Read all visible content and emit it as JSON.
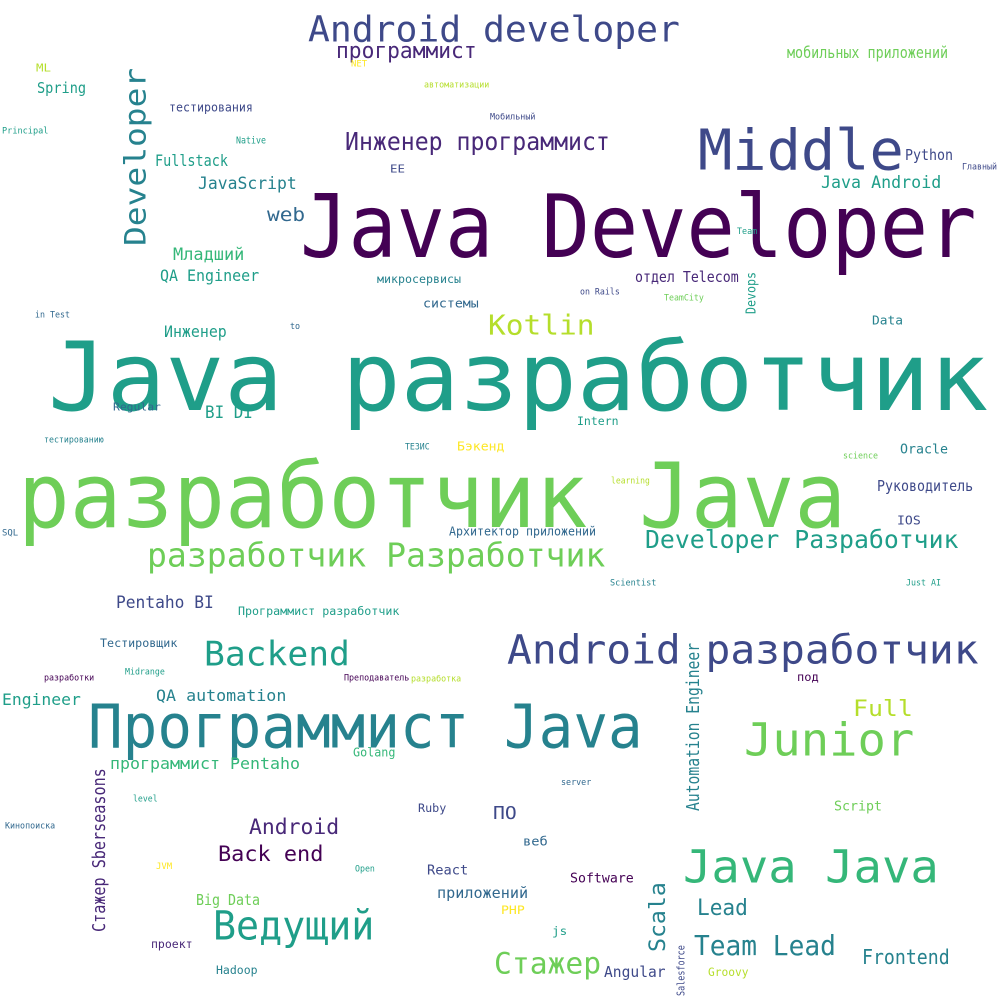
{
  "palette": {
    "dpurple": "#440154",
    "purple": "#482878",
    "indigo": "#3e4989",
    "blue": "#31688e",
    "steel": "#26828e",
    "teal": "#1f9e89",
    "green": "#35b779",
    "lgreen": "#6ece58",
    "lime": "#b5de2b",
    "yellow": "#fde725"
  },
  "words": [
    {
      "text": "Java разработчик",
      "color": "teal"
    },
    {
      "text": "разработчик Java",
      "color": "lgreen"
    },
    {
      "text": "Java Developer",
      "color": "dpurple"
    },
    {
      "text": "Программист Java",
      "color": "steel"
    },
    {
      "text": "Middle",
      "color": "indigo"
    },
    {
      "text": "Java Java",
      "color": "green"
    },
    {
      "text": "Android разработчик",
      "color": "indigo"
    },
    {
      "text": "Android developer",
      "color": "indigo"
    },
    {
      "text": "Junior",
      "color": "lgreen"
    },
    {
      "text": "Developer",
      "color": "steel"
    },
    {
      "text": "разработчик Разработчик",
      "color": "lgreen"
    },
    {
      "text": "Ведущий",
      "color": "teal"
    },
    {
      "text": "Backend",
      "color": "teal"
    },
    {
      "text": "Developer Разработчик",
      "color": "teal"
    },
    {
      "text": "Стажер",
      "color": "lgreen"
    },
    {
      "text": "Team Lead",
      "color": "steel"
    },
    {
      "text": "Kotlin",
      "color": "lime"
    },
    {
      "text": "Инженер программист",
      "color": "purple"
    },
    {
      "text": "программист",
      "color": "purple"
    },
    {
      "text": "Scala",
      "color": "steel"
    },
    {
      "text": "Back end",
      "color": "dpurple"
    },
    {
      "text": "Android",
      "color": "purple"
    },
    {
      "text": "Full",
      "color": "lime"
    },
    {
      "text": "Lead",
      "color": "steel"
    },
    {
      "text": "Frontend",
      "color": "steel"
    },
    {
      "text": "Automation Engineer",
      "color": "steel"
    },
    {
      "text": "Стажер Sberseasons",
      "color": "purple"
    },
    {
      "text": "QA automation",
      "color": "steel"
    },
    {
      "text": "web",
      "color": "blue"
    },
    {
      "text": "программист Pentaho",
      "color": "green"
    },
    {
      "text": "Pentaho BI",
      "color": "indigo"
    },
    {
      "text": "Java Android",
      "color": "teal"
    },
    {
      "text": "JavaScript",
      "color": "steel"
    },
    {
      "text": "Младший",
      "color": "green"
    },
    {
      "text": "QA Engineer",
      "color": "teal"
    },
    {
      "text": "мобильных приложений",
      "color": "lgreen"
    },
    {
      "text": "Fullstack",
      "color": "teal"
    },
    {
      "text": "Инженер",
      "color": "teal"
    },
    {
      "text": "BI DI",
      "color": "teal"
    },
    {
      "text": "Engineer",
      "color": "teal"
    },
    {
      "text": "Big Data",
      "color": "lgreen"
    },
    {
      "text": "ПО",
      "color": "indigo"
    },
    {
      "text": "Spring",
      "color": "teal"
    },
    {
      "text": "Python",
      "color": "indigo"
    },
    {
      "text": "Руководитель",
      "color": "indigo"
    },
    {
      "text": "отдел Telecom",
      "color": "purple"
    },
    {
      "text": "Oracle",
      "color": "steel"
    },
    {
      "text": "Angular",
      "color": "indigo"
    },
    {
      "text": "Software",
      "color": "dpurple"
    },
    {
      "text": "React",
      "color": "indigo"
    },
    {
      "text": "приложений",
      "color": "blue"
    },
    {
      "text": "Script",
      "color": "lgreen"
    },
    {
      "text": "IOS",
      "color": "indigo"
    },
    {
      "text": "Data",
      "color": "steel"
    },
    {
      "text": "Тестировщик",
      "color": "blue"
    },
    {
      "text": "Бэкенд",
      "color": "yellow"
    },
    {
      "text": "Архитектор приложений",
      "color": "blue"
    },
    {
      "text": "Программист разработчик",
      "color": "teal"
    },
    {
      "text": "системы",
      "color": "blue"
    },
    {
      "text": "тестирования",
      "color": "indigo"
    },
    {
      "text": "Devops",
      "color": "teal"
    },
    {
      "text": "веб",
      "color": "blue"
    },
    {
      "text": "js",
      "color": "teal"
    },
    {
      "text": "Intern",
      "color": "teal"
    },
    {
      "text": "под",
      "color": "dpurple"
    },
    {
      "text": "Golang",
      "color": "green"
    },
    {
      "text": "Hadoop",
      "color": "steel"
    },
    {
      "text": "PHP",
      "color": "yellow"
    },
    {
      "text": "проект",
      "color": "purple"
    },
    {
      "text": "ML",
      "color": "lime"
    },
    {
      "text": "EE",
      "color": "indigo"
    },
    {
      "text": "микросервисы",
      "color": "steel"
    },
    {
      "text": "Ruby",
      "color": "indigo"
    },
    {
      "text": "Regular",
      "color": "blue"
    },
    {
      "text": "Groovy",
      "color": "lime"
    },
    {
      "text": "Salesforce",
      "color": "indigo"
    },
    {
      "text": "Native",
      "color": "teal"
    },
    {
      "text": "NET",
      "color": "yellow"
    },
    {
      "text": "автоматизации",
      "color": "lime"
    },
    {
      "text": "Мобильный",
      "color": "indigo"
    },
    {
      "text": "Principal",
      "color": "teal"
    },
    {
      "text": "Главный",
      "color": "indigo"
    },
    {
      "text": "Team",
      "color": "teal"
    },
    {
      "text": "TeamCity",
      "color": "lgreen"
    },
    {
      "text": "on Rails",
      "color": "indigo"
    },
    {
      "text": "in Test",
      "color": "blue"
    },
    {
      "text": "to",
      "color": "blue"
    },
    {
      "text": "тестированию",
      "color": "steel"
    },
    {
      "text": "ТЕЗИС",
      "color": "steel"
    },
    {
      "text": "science",
      "color": "lgreen"
    },
    {
      "text": "learning",
      "color": "lime"
    },
    {
      "text": "SQL",
      "color": "blue"
    },
    {
      "text": "Scientist",
      "color": "steel"
    },
    {
      "text": "Just AI",
      "color": "teal"
    },
    {
      "text": "разработки",
      "color": "dpurple"
    },
    {
      "text": "Midrange",
      "color": "teal"
    },
    {
      "text": "Преподаватель",
      "color": "dpurple"
    },
    {
      "text": "разработка",
      "color": "lime"
    },
    {
      "text": "level",
      "color": "teal"
    },
    {
      "text": "server",
      "color": "blue"
    },
    {
      "text": "Кинопоиска",
      "color": "blue"
    },
    {
      "text": "JVM",
      "color": "yellow"
    },
    {
      "text": "Open",
      "color": "teal"
    }
  ]
}
